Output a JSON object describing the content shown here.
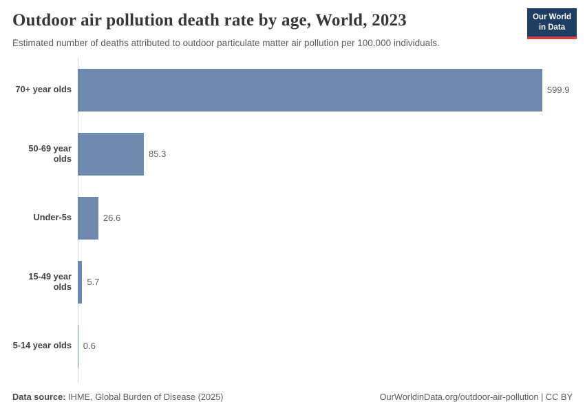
{
  "header": {
    "title": "Outdoor air pollution death rate by age, World, 2023",
    "subtitle": "Estimated number of deaths attributed to outdoor particulate matter air pollution per 100,000 individuals.",
    "logo": {
      "line1": "Our World",
      "line2": "in Data",
      "bg_color": "#1d3d63",
      "accent_color": "#d93c3f"
    }
  },
  "chart_data": {
    "type": "bar",
    "orientation": "horizontal",
    "title": "Outdoor air pollution death rate by age, World, 2023",
    "xlabel": "",
    "ylabel": "",
    "categories": [
      "70+ year olds",
      "50-69 year olds",
      "Under-5s",
      "15-49 year olds",
      "5-14 year olds"
    ],
    "values": [
      599.9,
      85.3,
      26.6,
      5.7,
      0.6
    ],
    "value_labels": [
      "599.9",
      "85.3",
      "26.6",
      "5.7",
      "0.6"
    ],
    "xlim": [
      0,
      600
    ],
    "bar_color": "#6e8aae",
    "grid": false,
    "legend": "none"
  },
  "footer": {
    "source_label": "Data source:",
    "source_text": "IHME, Global Burden of Disease (2025)",
    "rights": "OurWorldinData.org/outdoor-air-pollution | CC BY"
  }
}
